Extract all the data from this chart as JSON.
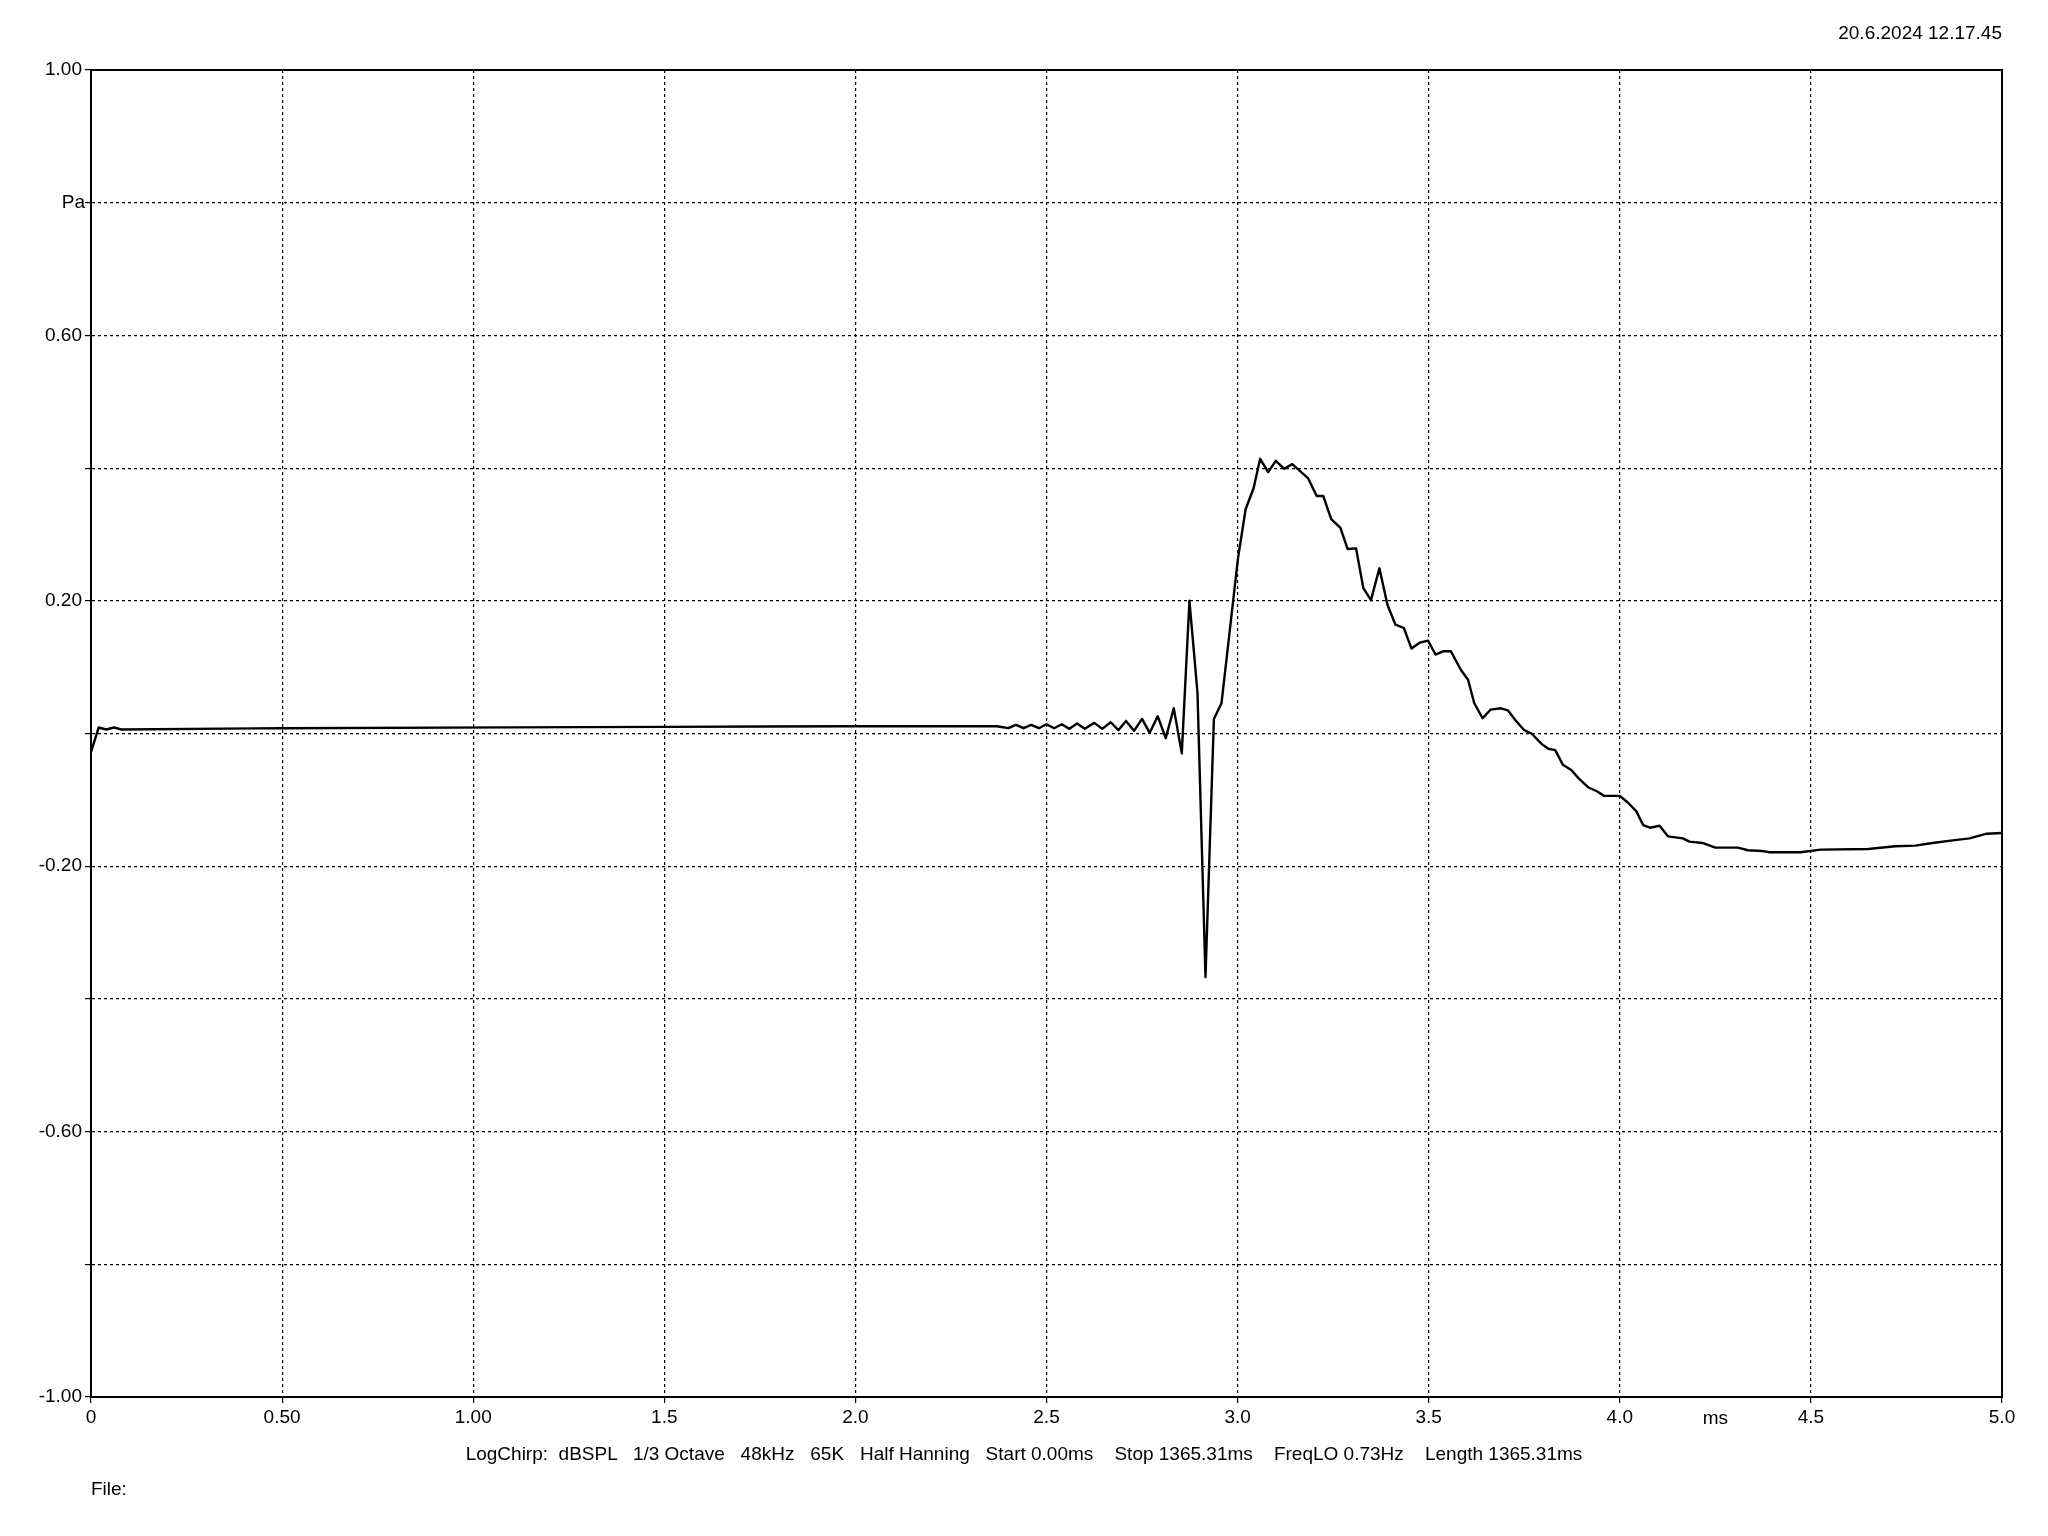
{
  "chart_data": {
    "type": "line",
    "xlabel": "ms",
    "ylabel": "Pa",
    "annotations": [
      "20.6.2024 12.17.45",
      "LogChirp:  dBSPL   1/3 Octave   48kHz   65K   Half Hanning   Start 0.00ms    Stop 1365.31ms    FreqLO 0.73Hz    Length 1365.31ms",
      "File:"
    ],
    "xlim": [
      0,
      5
    ],
    "xticks": [
      0,
      {
        "value": 0.5,
        "label": "0.50"
      },
      {
        "value": 1,
        "label": "1.00"
      },
      {
        "value": 1.5,
        "label": "1.5"
      },
      {
        "value": 2,
        "label": "2.0"
      },
      {
        "value": 2.5,
        "label": "2.5"
      },
      {
        "value": 3,
        "label": "3.0"
      },
      {
        "value": 3.5,
        "label": "3.5"
      },
      {
        "value": 4,
        "label": "4.0"
      },
      {
        "value": 4.5,
        "label": "4.5"
      },
      {
        "value": 5,
        "label": "5.0"
      }
    ],
    "ylim": [
      -1,
      1
    ],
    "yticks": [
      {
        "value": -1,
        "label": "-1.00"
      },
      {
        "value": -0.8,
        "label": null
      },
      {
        "value": -0.6,
        "label": "-0.60"
      },
      {
        "value": -0.4,
        "label": null
      },
      {
        "value": -0.2,
        "label": "-0.20"
      },
      {
        "value": 0,
        "label": null
      },
      {
        "value": 0.2,
        "label": "0.20"
      },
      {
        "value": 0.4,
        "label": null
      },
      {
        "value": 0.6,
        "label": "0.60"
      },
      {
        "value": 0.8,
        "label": null
      },
      {
        "value": 1,
        "label": "1.00"
      }
    ],
    "grid": true,
    "marker": "none",
    "line_style": "solid",
    "series": [
      {
        "color": "#000000",
        "x": [
          0,
          0.02,
          0.04,
          0.06,
          0.08,
          0.5,
          1.5,
          2.0,
          2.37,
          2.4,
          2.42,
          2.44,
          2.46,
          2.48,
          2.5,
          2.52,
          2.54,
          2.56,
          2.58,
          2.6,
          2.625,
          2.646,
          2.668,
          2.688,
          2.708,
          2.729,
          2.75,
          2.77,
          2.791,
          2.812,
          2.833,
          2.854,
          2.874,
          2.895,
          2.916,
          2.938,
          2.958,
          3.001,
          3.021,
          3.042,
          3.059,
          3.08,
          3.1,
          3.122,
          3.143,
          3.184,
          3.207,
          3.224,
          3.245,
          3.269,
          3.288,
          3.31,
          3.329,
          3.349,
          3.371,
          3.392,
          3.413,
          3.435,
          3.455,
          3.477,
          3.498,
          3.518,
          3.539,
          3.558,
          3.584,
          3.603,
          3.619,
          3.641,
          3.662,
          3.689,
          3.707,
          3.727,
          3.75,
          3.769,
          3.796,
          3.813,
          3.831,
          3.851,
          3.873,
          3.893,
          3.917,
          3.94,
          3.959,
          4.0,
          4.021,
          4.043,
          4.061,
          4.079,
          4.104,
          4.126,
          4.165,
          4.182,
          4.216,
          4.25,
          4.309,
          4.335,
          4.371,
          4.391,
          4.473,
          4.526,
          4.65,
          4.72,
          4.773,
          4.818,
          4.871,
          4.915,
          4.96,
          5.0
        ],
        "values": [
          -0.028,
          0.009,
          0.006,
          0.009,
          0.006,
          0.008,
          0.01,
          0.011,
          0.011,
          0.008,
          0.013,
          0.008,
          0.013,
          0.008,
          0.014,
          0.008,
          0.014,
          0.007,
          0.015,
          0.007,
          0.016,
          0.007,
          0.017,
          0.005,
          0.019,
          0.004,
          0.022,
          0.001,
          0.026,
          -0.007,
          0.038,
          -0.03,
          0.2,
          0.062,
          -0.367,
          0.022,
          0.046,
          0.264,
          0.338,
          0.37,
          0.414,
          0.394,
          0.411,
          0.399,
          0.406,
          0.385,
          0.358,
          0.358,
          0.323,
          0.31,
          0.278,
          0.279,
          0.219,
          0.201,
          0.249,
          0.194,
          0.164,
          0.159,
          0.128,
          0.137,
          0.14,
          0.119,
          0.124,
          0.124,
          0.096,
          0.081,
          0.046,
          0.023,
          0.036,
          0.038,
          0.035,
          0.02,
          0.005,
          0,
          -0.016,
          -0.023,
          -0.025,
          -0.047,
          -0.055,
          -0.068,
          -0.081,
          -0.087,
          -0.094,
          -0.094,
          -0.104,
          -0.117,
          -0.138,
          -0.142,
          -0.139,
          -0.155,
          -0.158,
          -0.163,
          -0.165,
          -0.172,
          -0.172,
          -0.176,
          -0.177,
          -0.179,
          -0.179,
          -0.175,
          -0.174,
          -0.17,
          -0.169,
          -0.165,
          -0.161,
          -0.158,
          -0.151,
          -0.15
        ]
      }
    ]
  }
}
